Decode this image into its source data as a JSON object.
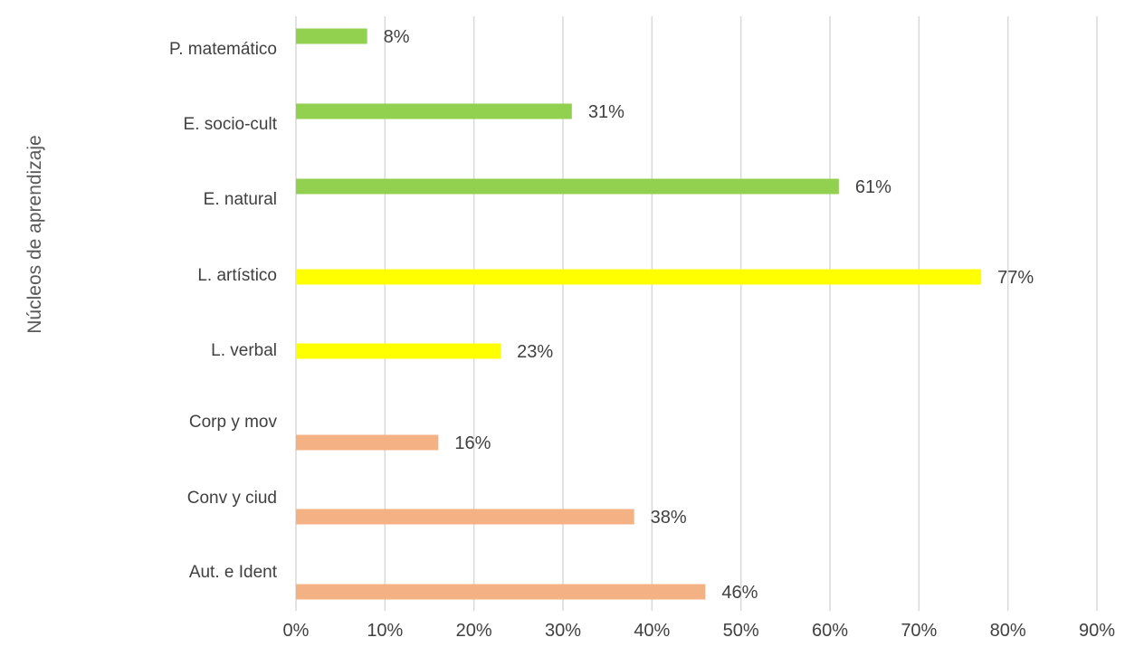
{
  "chart_data": {
    "type": "bar",
    "orientation": "horizontal",
    "title": "",
    "xlabel": "",
    "ylabel": "Núcleos de aprendizaje",
    "xlim": [
      0,
      90
    ],
    "x_ticks": [
      "0%",
      "10%",
      "20%",
      "30%",
      "40%",
      "50%",
      "60%",
      "70%",
      "80%",
      "90%"
    ],
    "grid": "vertical",
    "legend": "none",
    "categories": [
      "P. matemático",
      "E. socio-cult",
      "E. natural",
      "L. artístico",
      "L. verbal",
      "Corp y mov",
      "Conv y ciud",
      "Aut. e Ident"
    ],
    "values": [
      8,
      31,
      61,
      77,
      23,
      16,
      38,
      46
    ],
    "data_labels": [
      "8%",
      "31%",
      "61%",
      "77%",
      "23%",
      "16%",
      "38%",
      "46%"
    ],
    "colors": [
      "#92d050",
      "#92d050",
      "#92d050",
      "#ffff00",
      "#ffff00",
      "#f4b183",
      "#f4b183",
      "#f4b183"
    ]
  }
}
